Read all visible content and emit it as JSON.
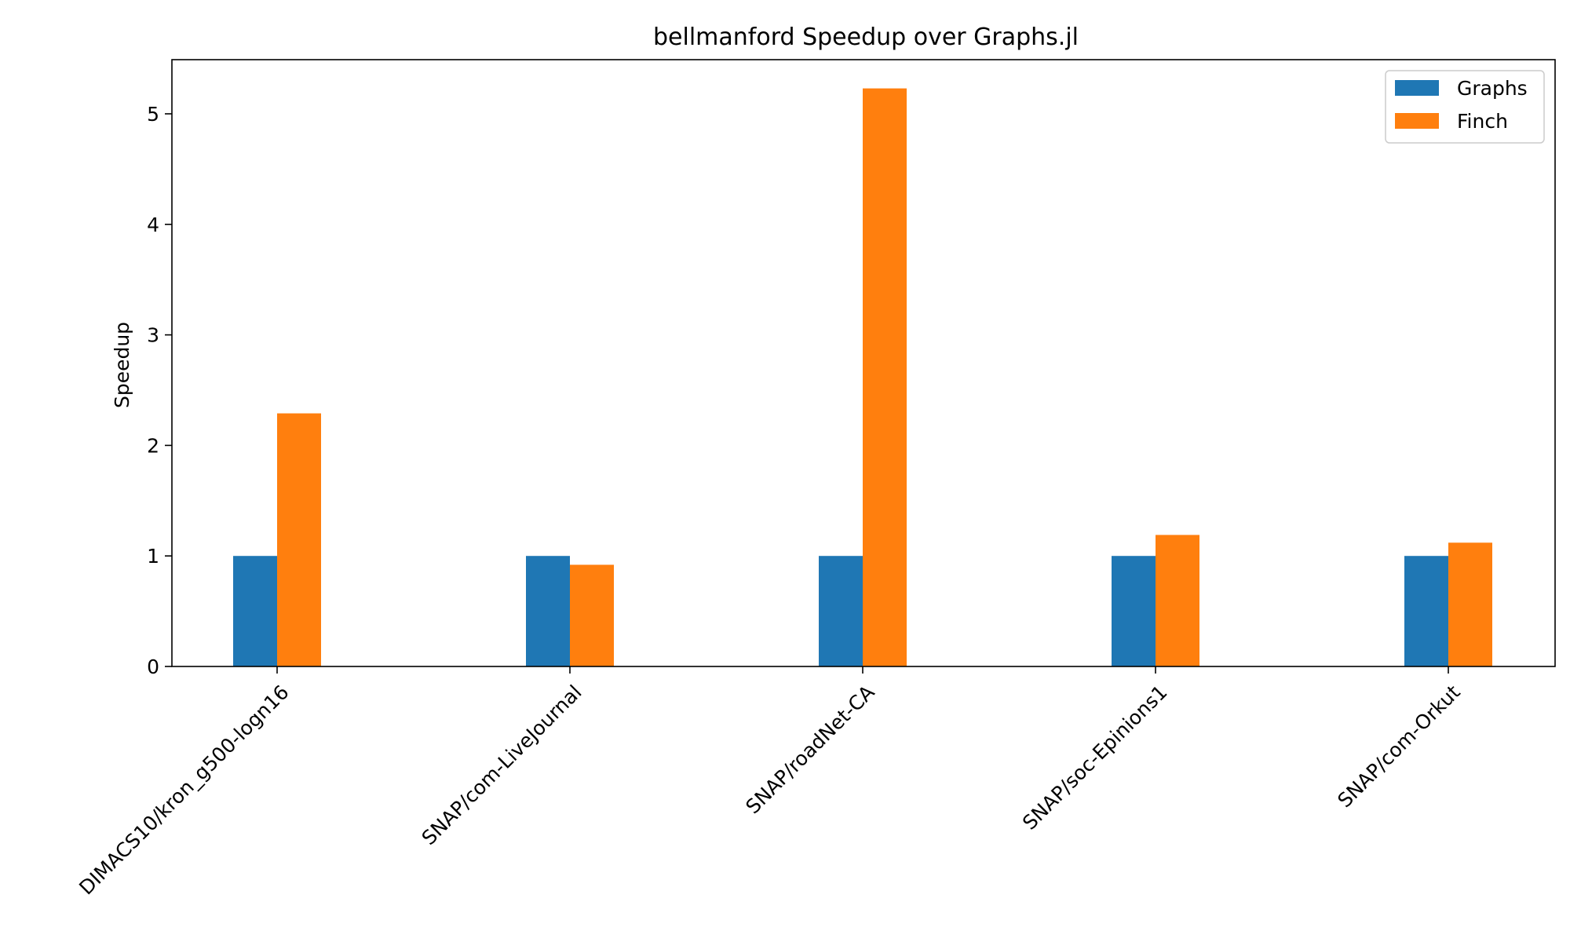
{
  "chart_data": {
    "type": "bar",
    "title": "bellmanford Speedup over Graphs.jl",
    "xlabel": "",
    "ylabel": "Speedup",
    "categories": [
      "DIMACS10/kron_g500-logn16",
      "SNAP/com-LiveJournal",
      "SNAP/roadNet-CA",
      "SNAP/soc-Epinions1",
      "SNAP/com-Orkut"
    ],
    "series": [
      {
        "name": "Graphs",
        "color": "#1f77b4",
        "values": [
          1.0,
          1.0,
          1.0,
          1.0,
          1.0
        ]
      },
      {
        "name": "Finch",
        "color": "#ff7f0e",
        "values": [
          2.29,
          0.92,
          5.23,
          1.19,
          1.12
        ]
      }
    ],
    "ylim": [
      0,
      5.49
    ],
    "yticks": [
      0,
      1,
      2,
      3,
      4,
      5
    ],
    "grid": false,
    "legend": "top-right"
  }
}
